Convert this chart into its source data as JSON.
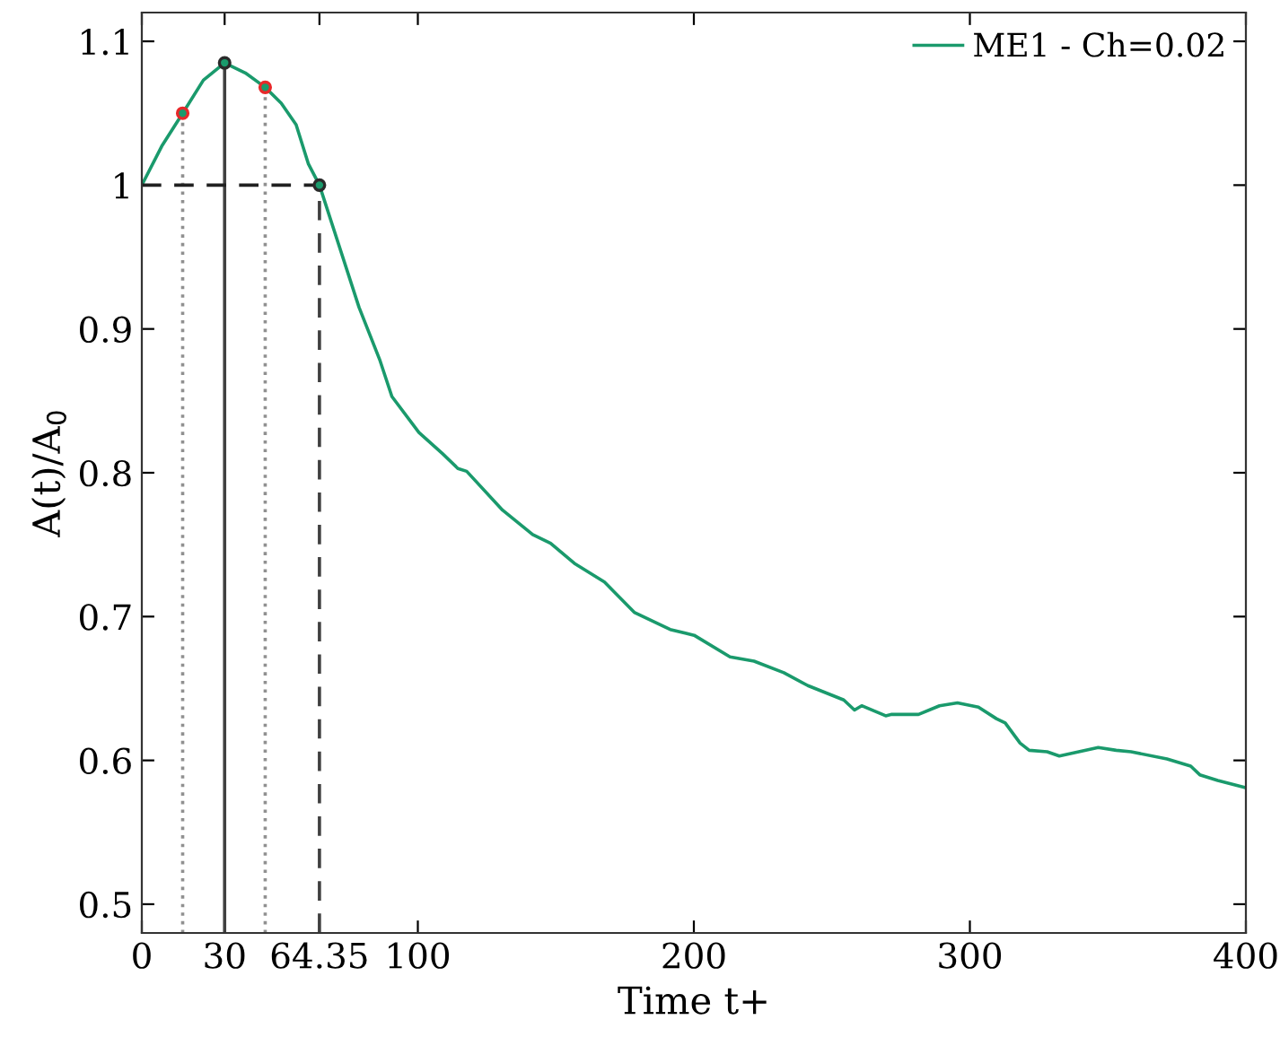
{
  "chart_data": {
    "type": "line",
    "xlabel": "Time t+",
    "ylabel": "A(t)/A$_{0}$",
    "xlim": [
      0,
      400
    ],
    "ylim": [
      0.48,
      1.12
    ],
    "xticks": [
      0,
      30,
      64.35,
      100,
      200,
      300,
      400
    ],
    "yticks": [
      0.5,
      0.6,
      0.7,
      0.8,
      0.9,
      1,
      1.1
    ],
    "grid": false,
    "legend": "top right",
    "marker": "none",
    "series": [
      {
        "name": "ME1 - Ch=0.02",
        "color": "#1a9a6c",
        "line_style": "solid",
        "x": [
          0,
          7.2,
          14.8,
          22.3,
          30,
          37.5,
          44.7,
          50.5,
          55.9,
          60.3,
          64.35,
          78.7,
          86.3,
          90.6,
          100.4,
          109.1,
          114.5,
          117.7,
          130.7,
          141.6,
          148.1,
          156.7,
          167.6,
          178.4,
          191.4,
          200.1,
          213.1,
          221.8,
          232.6,
          241.3,
          247.8,
          254.3,
          258.2,
          260.8,
          269.5,
          271.7,
          281.4,
          289.0,
          295.5,
          303.1,
          309.6,
          312.8,
          318.2,
          321.5,
          328.0,
          332.4,
          346.5,
          353.0,
          358.4,
          371.4,
          380.0,
          383.3,
          389.8,
          400
        ],
        "values": [
          1.0,
          1.027,
          1.05,
          1.073,
          1.085,
          1.078,
          1.068,
          1.057,
          1.042,
          1.015,
          1.0,
          0.915,
          0.878,
          0.853,
          0.828,
          0.813,
          0.803,
          0.801,
          0.774,
          0.757,
          0.751,
          0.737,
          0.724,
          0.703,
          0.691,
          0.687,
          0.672,
          0.669,
          0.661,
          0.652,
          0.647,
          0.642,
          0.635,
          0.638,
          0.631,
          0.632,
          0.632,
          0.638,
          0.64,
          0.637,
          0.629,
          0.626,
          0.612,
          0.607,
          0.606,
          0.603,
          0.609,
          0.607,
          0.606,
          0.601,
          0.596,
          0.59,
          0.586,
          0.581
        ]
      },
      {
        "type": "line",
        "color": "#909090",
        "line_style": "dotted",
        "x": [
          14.8,
          14.8
        ],
        "values": [
          0.48,
          1.05
        ]
      },
      {
        "type": "line",
        "color": "#909090",
        "line_style": "dotted",
        "x": [
          44.7,
          44.7
        ],
        "values": [
          0.48,
          1.068
        ]
      },
      {
        "type": "line",
        "color": "#404040",
        "line_style": "solid",
        "x": [
          30,
          30
        ],
        "values": [
          0.48,
          1.085
        ]
      },
      {
        "type": "line",
        "color": "#404040",
        "line_style": "dashed",
        "x": [
          64.35,
          64.35
        ],
        "values": [
          0.48,
          1.0
        ]
      },
      {
        "type": "line",
        "color": "#202020",
        "line_style": "dashed",
        "x": [
          0,
          64.35
        ],
        "values": [
          1.0,
          1.0
        ]
      },
      {
        "type": "scatter",
        "marker": "circle",
        "colors": [
          "#e8282a",
          "#2a2a2a",
          "#e8282a",
          "#2a2a2a"
        ],
        "x": [
          14.8,
          30,
          44.7,
          64.35
        ],
        "values": [
          1.05,
          1.085,
          1.068,
          1.0
        ]
      }
    ]
  }
}
